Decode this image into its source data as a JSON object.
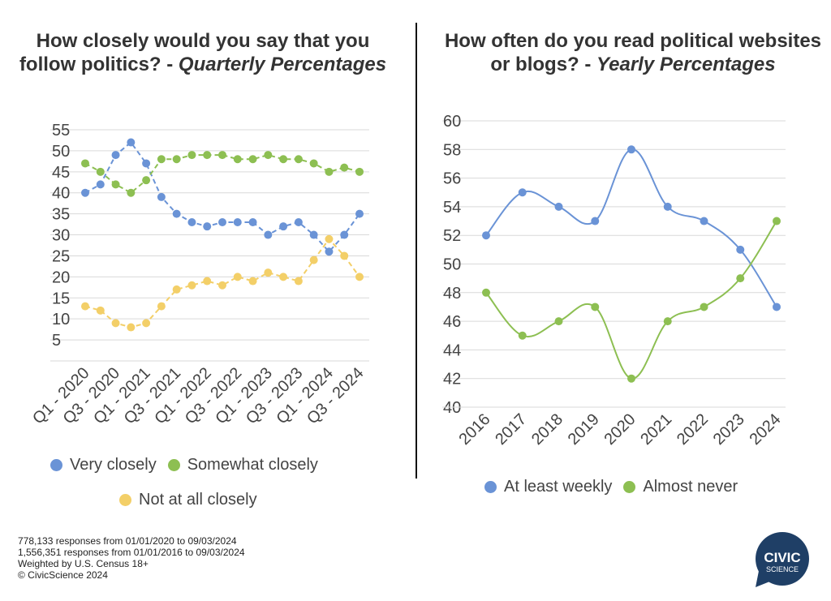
{
  "chart_data": [
    {
      "type": "line",
      "title_main": "How closely would you say that you follow politics? - ",
      "title_italic": "Quarterly Percentages",
      "categories": [
        "Q1 - 2020",
        "Q2 - 2020",
        "Q3 - 2020",
        "Q4 - 2020",
        "Q1 - 2021",
        "Q2 - 2021",
        "Q3 - 2021",
        "Q4 - 2021",
        "Q1 - 2022",
        "Q2 - 2022",
        "Q3 - 2022",
        "Q4 - 2022",
        "Q1 - 2023",
        "Q2 - 2023",
        "Q3 - 2023",
        "Q4 - 2023",
        "Q1 - 2024",
        "Q2 - 2024",
        "Q3 - 2024"
      ],
      "tick_labels": [
        "Q1 - 2020",
        "Q3 - 2020",
        "Q1 - 2021",
        "Q3 - 2021",
        "Q1 - 2022",
        "Q3 - 2022",
        "Q1 - 2023",
        "Q3 - 2023",
        "Q1 - 2024",
        "Q3 - 2024"
      ],
      "yticks": [
        5,
        10,
        15,
        20,
        25,
        30,
        35,
        40,
        45,
        50,
        55
      ],
      "ylim": [
        0,
        55
      ],
      "grid": true,
      "legend_placement": "bottom",
      "series": [
        {
          "name": "Very closely",
          "color": "#6a93d6",
          "values": [
            40,
            42,
            49,
            52,
            47,
            39,
            35,
            33,
            32,
            33,
            33,
            33,
            30,
            32,
            33,
            30,
            26,
            30,
            35
          ]
        },
        {
          "name": "Somewhat closely",
          "color": "#8dbf52",
          "values": [
            47,
            45,
            42,
            40,
            43,
            48,
            48,
            49,
            49,
            49,
            48,
            48,
            49,
            48,
            48,
            47,
            45,
            46,
            45
          ]
        },
        {
          "name": "Not at all closely",
          "color": "#f3cf68",
          "values": [
            13,
            12,
            9,
            8,
            9,
            13,
            17,
            18,
            19,
            18,
            20,
            19,
            21,
            20,
            19,
            24,
            29,
            25,
            20
          ]
        }
      ]
    },
    {
      "type": "line",
      "title_main": "How often do you read political websites or blogs? - ",
      "title_italic": "Yearly Percentages",
      "categories": [
        "2016",
        "2017",
        "2018",
        "2019",
        "2020",
        "2021",
        "2022",
        "2023",
        "2024"
      ],
      "tick_labels": [
        "2016",
        "2017",
        "2018",
        "2019",
        "2020",
        "2021",
        "2022",
        "2023",
        "2024"
      ],
      "yticks": [
        40,
        42,
        44,
        46,
        48,
        50,
        52,
        54,
        56,
        58,
        60
      ],
      "ylim": [
        40,
        60
      ],
      "grid": true,
      "legend_placement": "bottom",
      "series": [
        {
          "name": "At least weekly",
          "color": "#6a93d6",
          "values": [
            52,
            55,
            54,
            53,
            58,
            54,
            53,
            51,
            47
          ]
        },
        {
          "name": "Almost never",
          "color": "#8dbf52",
          "values": [
            48,
            45,
            46,
            47,
            42,
            46,
            47,
            49,
            53
          ]
        }
      ]
    }
  ],
  "footer": {
    "line1": "778,133 responses from 01/01/2020 to 09/03/2024",
    "line2": "1,556,351 responses from 01/01/2016 to 09/03/2024",
    "line3": "Weighted by U.S. Census 18+",
    "line4": "© CivicScience 2024"
  },
  "logo": {
    "line1": "CIVIC",
    "line2": "SCIENCE",
    "color": "#1f3f66"
  }
}
